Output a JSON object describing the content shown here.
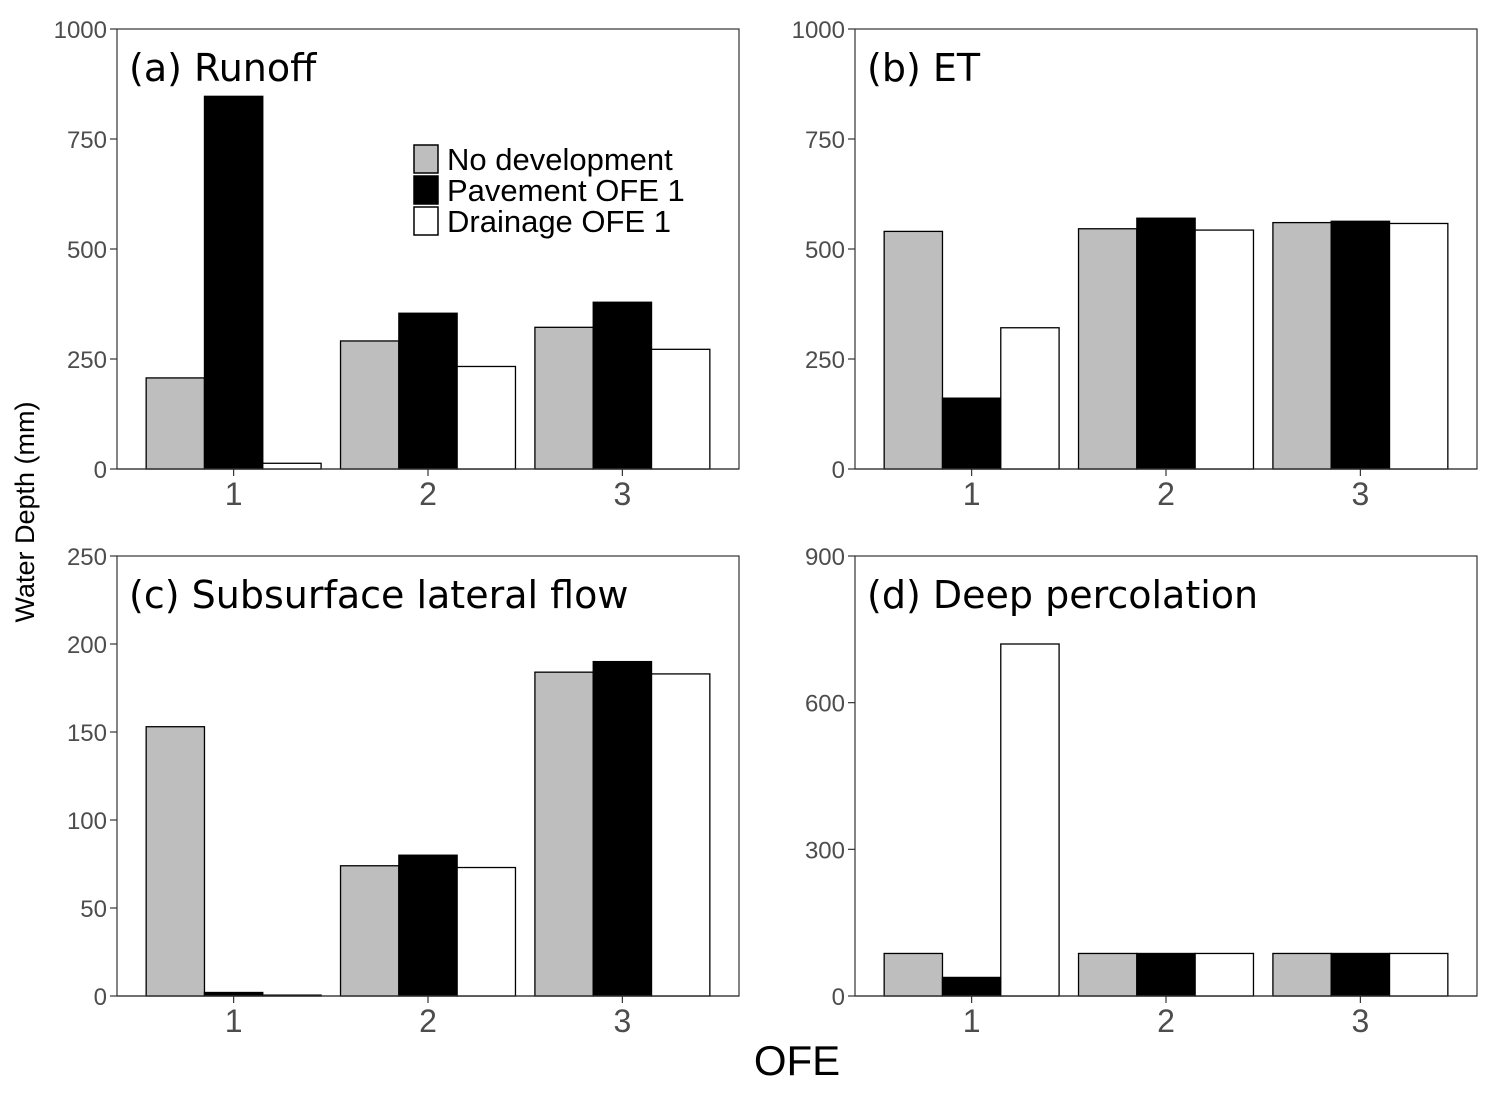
{
  "figure": {
    "ylabel": "Water Depth (mm)",
    "xlabel": "OFE"
  },
  "legend": {
    "entries": [
      {
        "label": "No development",
        "color": "#bebebe"
      },
      {
        "label": "Pavement OFE 1",
        "color": "#000000"
      },
      {
        "label": "Drainage OFE 1",
        "color": "#ffffff"
      }
    ]
  },
  "chart_data": [
    {
      "type": "bar",
      "title": "(a) Runoff",
      "categories": [
        "1",
        "2",
        "3"
      ],
      "ylim": [
        0,
        1000
      ],
      "yticks": [
        0,
        250,
        500,
        750,
        1000
      ],
      "series": [
        {
          "name": "No development",
          "values": [
            207,
            291,
            322
          ]
        },
        {
          "name": "Pavement OFE 1",
          "values": [
            847,
            354,
            379
          ]
        },
        {
          "name": "Drainage OFE 1",
          "values": [
            13,
            233,
            272
          ]
        }
      ]
    },
    {
      "type": "bar",
      "title": "(b) ET",
      "categories": [
        "1",
        "2",
        "3"
      ],
      "ylim": [
        0,
        1000
      ],
      "yticks": [
        0,
        250,
        500,
        750,
        1000
      ],
      "series": [
        {
          "name": "No development",
          "values": [
            540,
            546,
            560
          ]
        },
        {
          "name": "Pavement OFE 1",
          "values": [
            161,
            570,
            563
          ]
        },
        {
          "name": "Drainage OFE 1",
          "values": [
            321,
            543,
            558
          ]
        }
      ]
    },
    {
      "type": "bar",
      "title": "(c) Subsurface lateral flow",
      "categories": [
        "1",
        "2",
        "3"
      ],
      "ylim": [
        0,
        250
      ],
      "yticks": [
        0,
        50,
        100,
        150,
        200,
        250
      ],
      "series": [
        {
          "name": "No development",
          "values": [
            153,
            74,
            184
          ]
        },
        {
          "name": "Pavement OFE 1",
          "values": [
            2,
            80,
            190
          ]
        },
        {
          "name": "Drainage OFE 1",
          "values": [
            0.5,
            73,
            183
          ]
        }
      ]
    },
    {
      "type": "bar",
      "title": "(d) Deep percolation",
      "categories": [
        "1",
        "2",
        "3"
      ],
      "ylim": [
        0,
        900
      ],
      "yticks": [
        0,
        300,
        600,
        900
      ],
      "series": [
        {
          "name": "No development",
          "values": [
            87,
            87,
            87
          ]
        },
        {
          "name": "Pavement OFE 1",
          "values": [
            38,
            87,
            87
          ]
        },
        {
          "name": "Drainage OFE 1",
          "values": [
            720,
            87,
            87
          ]
        }
      ]
    }
  ]
}
